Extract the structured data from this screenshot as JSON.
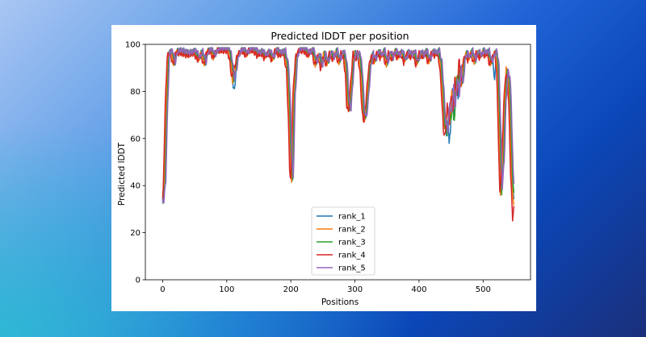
{
  "chart_data": {
    "type": "line",
    "title": "Predicted lDDT per position",
    "xlabel": "Positions",
    "ylabel": "Predicted lDDT",
    "xlim": [
      -27,
      574
    ],
    "ylim": [
      0,
      100
    ],
    "xticks": [
      0,
      100,
      200,
      300,
      400,
      500
    ],
    "yticks": [
      0,
      20,
      40,
      60,
      80,
      100
    ],
    "legend_position": "lower-center",
    "series": [
      {
        "name": "rank_1",
        "color": "#1f77b4",
        "dx": 0,
        "offset": 0.0,
        "dips": [
          [
            112,
            -7
          ],
          [
            447,
            -14
          ],
          [
            455,
            -6
          ],
          [
            518,
            -12
          ],
          [
            565,
            2
          ]
        ]
      },
      {
        "name": "rank_2",
        "color": "#ff7f0e",
        "dx": 1,
        "offset": -0.5,
        "dips": [
          [
            442,
            5
          ],
          [
            460,
            6
          ],
          [
            537,
            3
          ]
        ]
      },
      {
        "name": "rank_3",
        "color": "#2ca02c",
        "dx": -1,
        "offset": 0.3,
        "dips": [
          [
            447,
            -4
          ],
          [
            454,
            -10
          ],
          [
            462,
            7
          ]
        ]
      },
      {
        "name": "rank_4",
        "color": "#d62728",
        "dx": 2,
        "offset": -0.8,
        "dips": [
          [
            0,
            -4
          ],
          [
            110,
            3
          ],
          [
            463,
            6
          ],
          [
            546,
            -6
          ]
        ]
      },
      {
        "name": "rank_5",
        "color": "#9467bd",
        "dx": -2,
        "offset": 0.5,
        "dips": [
          [
            443,
            3
          ],
          [
            452,
            4
          ],
          [
            530,
            2
          ]
        ]
      }
    ],
    "base_curve": [
      [
        0,
        33
      ],
      [
        3,
        42
      ],
      [
        6,
        75
      ],
      [
        9,
        96
      ],
      [
        14,
        97
      ],
      [
        18,
        92
      ],
      [
        22,
        97
      ],
      [
        30,
        97
      ],
      [
        40,
        96
      ],
      [
        50,
        97
      ],
      [
        57,
        94
      ],
      [
        61,
        97
      ],
      [
        66,
        92
      ],
      [
        70,
        97
      ],
      [
        76,
        98
      ],
      [
        80,
        95
      ],
      [
        86,
        98
      ],
      [
        95,
        98
      ],
      [
        103,
        98
      ],
      [
        107,
        93
      ],
      [
        110,
        85
      ],
      [
        113,
        88
      ],
      [
        117,
        95
      ],
      [
        121,
        97
      ],
      [
        126,
        98
      ],
      [
        131,
        96
      ],
      [
        136,
        98
      ],
      [
        143,
        98
      ],
      [
        149,
        96
      ],
      [
        155,
        97
      ],
      [
        160,
        95
      ],
      [
        166,
        97
      ],
      [
        172,
        94
      ],
      [
        177,
        98
      ],
      [
        183,
        96
      ],
      [
        190,
        97
      ],
      [
        195,
        90
      ],
      [
        198,
        70
      ],
      [
        200,
        48
      ],
      [
        202,
        43
      ],
      [
        205,
        78
      ],
      [
        209,
        95
      ],
      [
        214,
        98
      ],
      [
        222,
        98
      ],
      [
        228,
        96
      ],
      [
        234,
        98
      ],
      [
        239,
        92
      ],
      [
        244,
        96
      ],
      [
        248,
        90
      ],
      [
        252,
        96
      ],
      [
        257,
        92
      ],
      [
        262,
        97
      ],
      [
        266,
        94
      ],
      [
        271,
        97
      ],
      [
        276,
        93
      ],
      [
        280,
        97
      ],
      [
        284,
        95
      ],
      [
        287,
        88
      ],
      [
        289,
        75
      ],
      [
        292,
        72
      ],
      [
        295,
        84
      ],
      [
        299,
        97
      ],
      [
        303,
        94
      ],
      [
        306,
        97
      ],
      [
        310,
        88
      ],
      [
        313,
        72
      ],
      [
        316,
        68
      ],
      [
        319,
        76
      ],
      [
        323,
        90
      ],
      [
        327,
        96
      ],
      [
        331,
        93
      ],
      [
        336,
        97
      ],
      [
        341,
        95
      ],
      [
        345,
        97
      ],
      [
        350,
        92
      ],
      [
        354,
        97
      ],
      [
        358,
        94
      ],
      [
        363,
        97
      ],
      [
        368,
        95
      ],
      [
        373,
        97
      ],
      [
        378,
        93
      ],
      [
        383,
        97
      ],
      [
        388,
        95
      ],
      [
        392,
        97
      ],
      [
        397,
        92
      ],
      [
        402,
        97
      ],
      [
        406,
        95
      ],
      [
        411,
        97
      ],
      [
        416,
        93
      ],
      [
        421,
        97
      ],
      [
        426,
        96
      ],
      [
        430,
        97
      ],
      [
        434,
        92
      ],
      [
        437,
        80
      ],
      [
        440,
        64
      ],
      [
        443,
        62
      ],
      [
        446,
        75
      ],
      [
        449,
        67
      ],
      [
        452,
        80
      ],
      [
        455,
        73
      ],
      [
        458,
        86
      ],
      [
        461,
        78
      ],
      [
        464,
        90
      ],
      [
        467,
        82
      ],
      [
        470,
        93
      ],
      [
        474,
        96
      ],
      [
        478,
        94
      ],
      [
        482,
        97
      ],
      [
        487,
        93
      ],
      [
        491,
        97
      ],
      [
        496,
        95
      ],
      [
        500,
        97
      ],
      [
        504,
        96
      ],
      [
        508,
        97
      ],
      [
        512,
        92
      ],
      [
        516,
        95
      ],
      [
        520,
        97
      ],
      [
        523,
        90
      ],
      [
        526,
        60
      ],
      [
        528,
        37
      ],
      [
        531,
        50
      ],
      [
        534,
        75
      ],
      [
        537,
        88
      ],
      [
        540,
        86
      ],
      [
        542,
        75
      ],
      [
        545,
        45
      ],
      [
        548,
        33
      ]
    ]
  }
}
